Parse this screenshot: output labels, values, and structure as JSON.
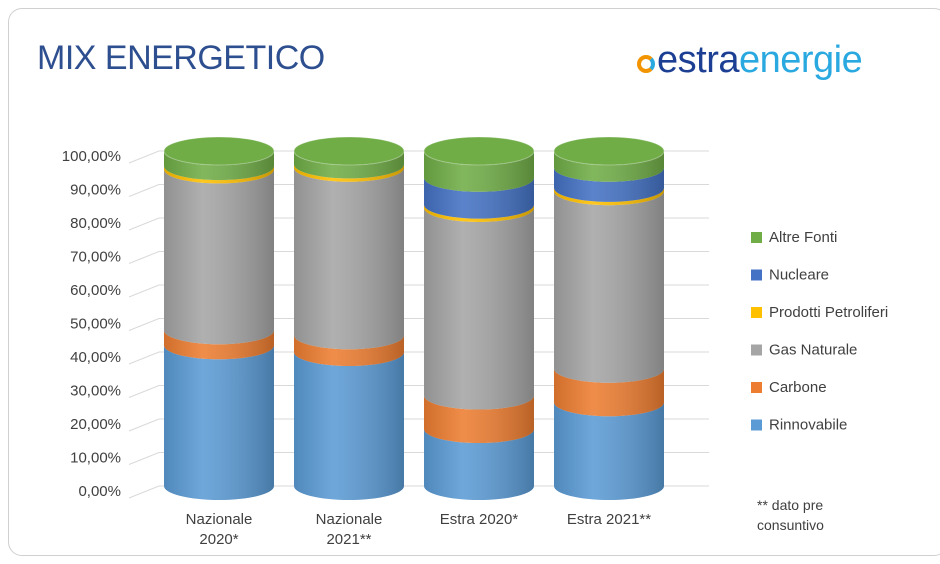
{
  "title": "MIX ENERGETICO",
  "logo": [
    "estra",
    "energie"
  ],
  "note": "** dato pre consuntivo",
  "chart_data": {
    "type": "stacked_cylinder",
    "categories": [
      "Nazionale 2020*",
      "Nazionale 2021**",
      "Estra 2020*",
      "Estra 2021**"
    ],
    "series": [
      {
        "name": "Rinnovabile",
        "color": "#5b9bd5",
        "values": [
          42,
          40,
          17,
          25
        ]
      },
      {
        "name": "Carbone",
        "color": "#ed7d31",
        "values": [
          4.5,
          5,
          10,
          10
        ]
      },
      {
        "name": "Gas Naturale",
        "color": "#a5a5a5",
        "values": [
          48,
          50,
          56,
          53
        ]
      },
      {
        "name": "Prodotti Petroliferi",
        "color": "#ffc000",
        "values": [
          1,
          1,
          1,
          1
        ]
      },
      {
        "name": "Nucleare",
        "color": "#4472c4",
        "values": [
          0,
          0,
          8,
          6
        ]
      },
      {
        "name": "Altre Fonti",
        "color": "#70ad47",
        "values": [
          4.5,
          4,
          8,
          5
        ]
      }
    ],
    "ylim": [
      0,
      100
    ],
    "yticks": [
      {
        "value": 0,
        "label": "0,00%"
      },
      {
        "value": 10,
        "label": "10,00%"
      },
      {
        "value": 20,
        "label": "20,00%"
      },
      {
        "value": 30,
        "label": "30,00%"
      },
      {
        "value": 40,
        "label": "40,00%"
      },
      {
        "value": 50,
        "label": "50,00%"
      },
      {
        "value": 60,
        "label": "60,00%"
      },
      {
        "value": 70,
        "label": "70,00%"
      },
      {
        "value": 80,
        "label": "80,00%"
      },
      {
        "value": 90,
        "label": "90,00%"
      },
      {
        "value": 100,
        "label": "100,00%"
      }
    ],
    "grid": true,
    "legend": "right"
  }
}
